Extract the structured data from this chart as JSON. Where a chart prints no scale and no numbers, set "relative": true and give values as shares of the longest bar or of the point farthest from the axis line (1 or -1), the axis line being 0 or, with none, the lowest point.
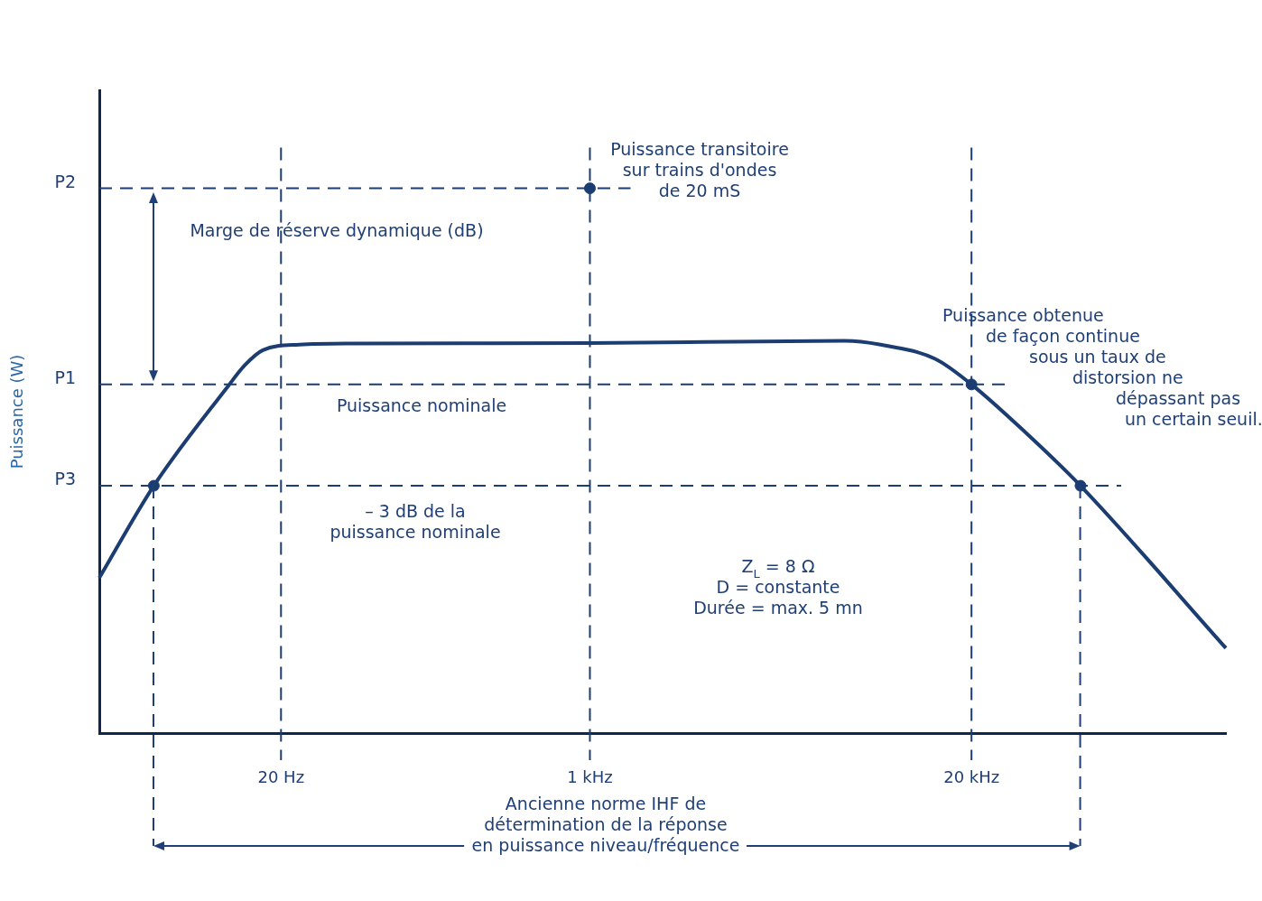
{
  "chart_data": {
    "type": "line",
    "relative": true,
    "ylabel": "Puissance (W)",
    "categories": [
      null,
      null,
      null,
      null,
      null,
      null,
      null,
      null,
      null,
      null,
      "20 Hz",
      null,
      null,
      null,
      null,
      null,
      null,
      null,
      null,
      null,
      null,
      null,
      null,
      null,
      null,
      null,
      null,
      "1 kHz",
      null,
      null,
      null,
      null,
      null,
      null,
      null,
      null,
      null,
      null,
      null,
      null,
      null,
      null,
      null,
      null,
      null,
      null,
      null,
      null,
      "20 kHz",
      null,
      null,
      null,
      null,
      null,
      null,
      null,
      null,
      null,
      null,
      null,
      null,
      null,
      null
    ],
    "grid": false,
    "legend": false,
    "marker": "none",
    "line_style": "solid",
    "series": [
      {
        "color": "#1c3d72",
        "values": [
          0.285,
          null,
          null,
          0.454,
          null,
          null,
          null,
          0.633,
          0.675,
          0.703,
          null,
          0.713,
          null,
          null,
          0.715,
          null,
          null,
          null,
          null,
          null,
          null,
          null,
          null,
          null,
          null,
          null,
          null,
          0.716,
          null,
          null,
          null,
          null,
          null,
          null,
          null,
          null,
          null,
          null,
          null,
          null,
          null,
          0.72,
          null,
          0.713,
          null,
          null,
          0.687,
          null,
          0.64,
          null,
          null,
          0.551,
          null,
          null,
          0.454,
          null,
          null,
          null,
          null,
          null,
          null,
          null,
          0.156
        ]
      },
      {
        "type": "scatter",
        "color": "#1c3d72",
        "marker": "circle",
        "values": [
          null,
          null,
          null,
          0.454,
          null,
          null,
          null,
          null,
          null,
          null,
          null,
          null,
          null,
          null,
          null,
          null,
          null,
          null,
          null,
          null,
          null,
          null,
          null,
          null,
          null,
          null,
          null,
          1,
          null,
          null,
          null,
          null,
          null,
          null,
          null,
          null,
          null,
          null,
          null,
          null,
          null,
          null,
          null,
          null,
          null,
          null,
          null,
          null,
          0.64,
          null,
          null,
          null,
          null,
          null,
          0.454,
          null,
          null,
          null,
          null,
          null,
          null,
          null,
          null
        ]
      }
    ],
    "ref_lines": [
      {
        "axis": "y",
        "value": 1,
        "label": "P2",
        "line_style": "dashed",
        "color": "#1c3d72"
      },
      {
        "axis": "y",
        "value": 0.64,
        "label": "P1",
        "line_style": "dashed",
        "color": "#1c3d72"
      },
      {
        "axis": "y",
        "value": 0.454,
        "label": "P3",
        "line_style": "dashed",
        "color": "#1c3d72"
      },
      {
        "axis": "x",
        "value": "20 Hz",
        "line_style": "dashed",
        "color": "#1c3d72"
      },
      {
        "axis": "x",
        "value": "1 kHz",
        "line_style": "dashed",
        "color": "#1c3d72"
      },
      {
        "axis": "x",
        "value": "20 kHz",
        "line_style": "dashed",
        "color": "#1c3d72"
      }
    ],
    "annotations": [
      "Puissance transitoire\nsur trains d'ondes\nde 20 mS",
      "Marge de réserve dynamique (dB)",
      "Puissance nominale",
      "– 3 dB de la\npuissance nominale",
      "Z$_{L}$ = 8 Ω\nD = constante\nDurée = max. 5 mn",
      "Puissance obtenue\nde façon continue\nsous un taux de\ndistorsion ne\ndépassant pas\nun certain seuil.",
      "Ancienne norme IHF de\ndétermination de la réponse\nen puissance niveau/fréquence"
    ]
  }
}
